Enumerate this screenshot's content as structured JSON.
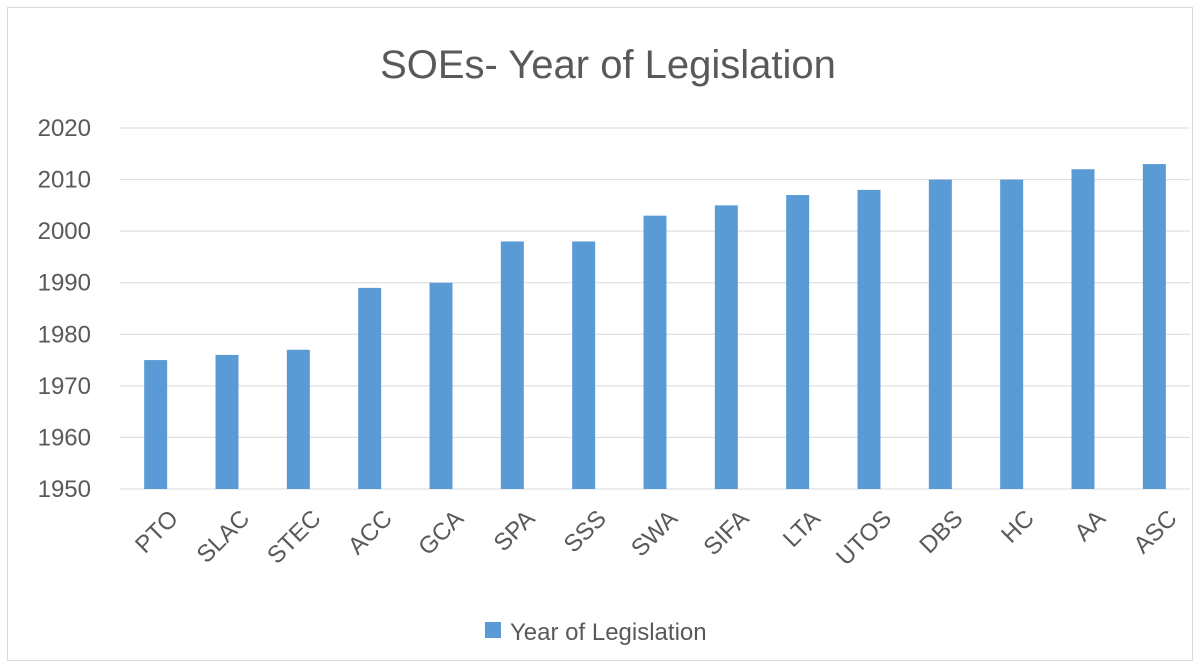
{
  "chart_data": {
    "type": "bar",
    "title": "SOEs- Year of Legislation",
    "categories": [
      "PTO",
      "SLAC",
      "STEC",
      "ACC",
      "GCA",
      "SPA",
      "SSS",
      "SWA",
      "SIFA",
      "LTA",
      "UTOS",
      "DBS",
      "HC",
      "AA",
      "ASC"
    ],
    "series": [
      {
        "name": "Year of Legislation",
        "values": [
          1975,
          1976,
          1977,
          1989,
          1990,
          1998,
          1998,
          2003,
          2005,
          2007,
          2008,
          2010,
          2010,
          2012,
          2013
        ],
        "color": "#5b9bd5"
      }
    ],
    "ylim": [
      1950,
      2020
    ],
    "yticks": [
      1950,
      1960,
      1970,
      1980,
      1990,
      2000,
      2010,
      2020
    ],
    "grid": true,
    "legend_position": "bottom",
    "gridline_color": "#d9d9d9",
    "text_color": "#595959"
  }
}
